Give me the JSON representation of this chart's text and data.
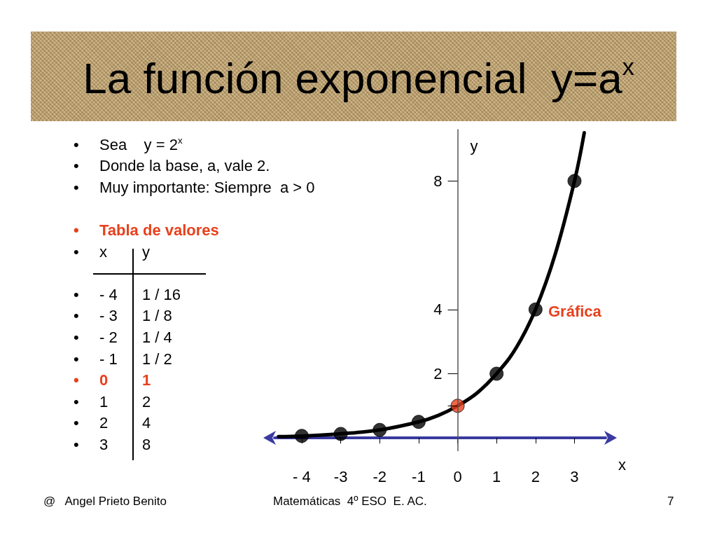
{
  "chart_data": {
    "type": "scatter",
    "title": "La función exponencial  y=a$^{x}$",
    "xlabel": "x",
    "ylabel": "y",
    "x": [
      -4,
      -3,
      -2,
      -1,
      0,
      1,
      2,
      3
    ],
    "series": [
      {
        "type": "line",
        "marker": "none",
        "color": "#000000",
        "x": [
          -4.6,
          -4,
          -3,
          -2,
          -1,
          -0.5,
          0,
          0.5,
          1,
          1.5,
          2,
          2.5,
          3,
          3.25
        ],
        "values": [
          0.04,
          0.06,
          0.13,
          0.25,
          0.5,
          0.7,
          1,
          1.4,
          2,
          2.8,
          4,
          5.7,
          8,
          9.5
        ]
      },
      {
        "color": "#000000",
        "colors": [
          "#000000",
          "#000000",
          "#000000",
          "#000000",
          "#e8401c",
          "#000000",
          "#000000",
          "#000000"
        ],
        "values": [
          0.0625,
          0.125,
          0.25,
          0.5,
          1,
          2,
          4,
          8
        ]
      }
    ],
    "marker": "circle",
    "xlim": [
      -4.7,
      3.8
    ],
    "xticks": [
      {
        "value": -4,
        "label": "- 4"
      },
      -3,
      -2,
      -1,
      0,
      1,
      2,
      3
    ],
    "ylim": [
      -0.4,
      9.6
    ],
    "yticks": [
      {
        "value": 1,
        "label": null
      },
      2,
      4,
      8
    ],
    "annotations": [
      "•\tSea    y = 2$^{x}$",
      "•\tDonde la base, a, vale 2.",
      "•\tMuy importante: Siempre  a > 0",
      "•\tTabla de valores",
      "•\tx",
      "y",
      "•\t- 4",
      "1 / 16",
      "•\t- 3",
      "1 / 8",
      "•\t- 2",
      "1 / 4",
      "•\t- 1",
      "1 / 2",
      "•\t0",
      "1",
      "•\t1",
      "2",
      "•\t2",
      "4",
      "•\t3",
      "8",
      "Gráfica",
      "@   Angel Prieto Benito",
      "Matemáticas  4º ESO  E. AC.",
      "7"
    ]
  }
}
